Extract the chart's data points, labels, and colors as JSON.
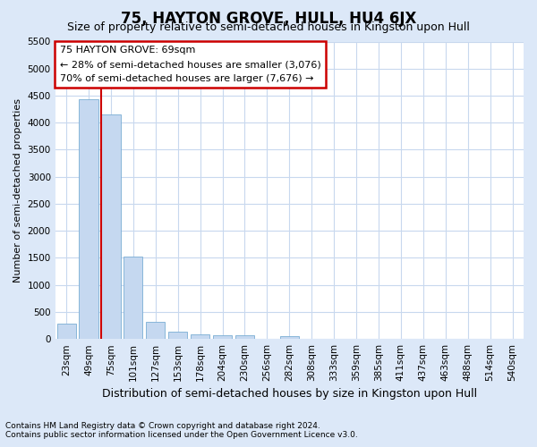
{
  "title": "75, HAYTON GROVE, HULL, HU4 6JX",
  "subtitle": "Size of property relative to semi-detached houses in Kingston upon Hull",
  "xlabel": "Distribution of semi-detached houses by size in Kingston upon Hull",
  "ylabel": "Number of semi-detached properties",
  "footnote1": "Contains HM Land Registry data © Crown copyright and database right 2024.",
  "footnote2": "Contains public sector information licensed under the Open Government Licence v3.0.",
  "bar_labels": [
    "23sqm",
    "49sqm",
    "75sqm",
    "101sqm",
    "127sqm",
    "153sqm",
    "178sqm",
    "204sqm",
    "230sqm",
    "256sqm",
    "282sqm",
    "308sqm",
    "333sqm",
    "359sqm",
    "385sqm",
    "411sqm",
    "437sqm",
    "463sqm",
    "488sqm",
    "514sqm",
    "540sqm"
  ],
  "bar_values": [
    280,
    4430,
    4150,
    1530,
    320,
    130,
    80,
    70,
    65,
    0,
    60,
    0,
    0,
    0,
    0,
    0,
    0,
    0,
    0,
    0,
    0
  ],
  "bar_color": "#c5d8f0",
  "bar_edge_color": "#7aadd4",
  "vline_bar_index": 2,
  "vline_color": "#cc0000",
  "annotation_line1": "75 HAYTON GROVE: 69sqm",
  "annotation_line2": "← 28% of semi-detached houses are smaller (3,076)",
  "annotation_line3": "70% of semi-detached houses are larger (7,676) →",
  "ylim": [
    0,
    5500
  ],
  "yticks": [
    0,
    500,
    1000,
    1500,
    2000,
    2500,
    3000,
    3500,
    4000,
    4500,
    5000,
    5500
  ],
  "bg_color": "#dce8f8",
  "plot_bg_color": "#ffffff",
  "grid_color": "#c8d8ee",
  "annotation_box_color": "#ffffff",
  "annotation_box_edge": "#cc0000",
  "title_fontsize": 12,
  "subtitle_fontsize": 9,
  "xlabel_fontsize": 9,
  "ylabel_fontsize": 8,
  "tick_fontsize": 7.5,
  "annotation_fontsize": 8,
  "footnote_fontsize": 6.5
}
